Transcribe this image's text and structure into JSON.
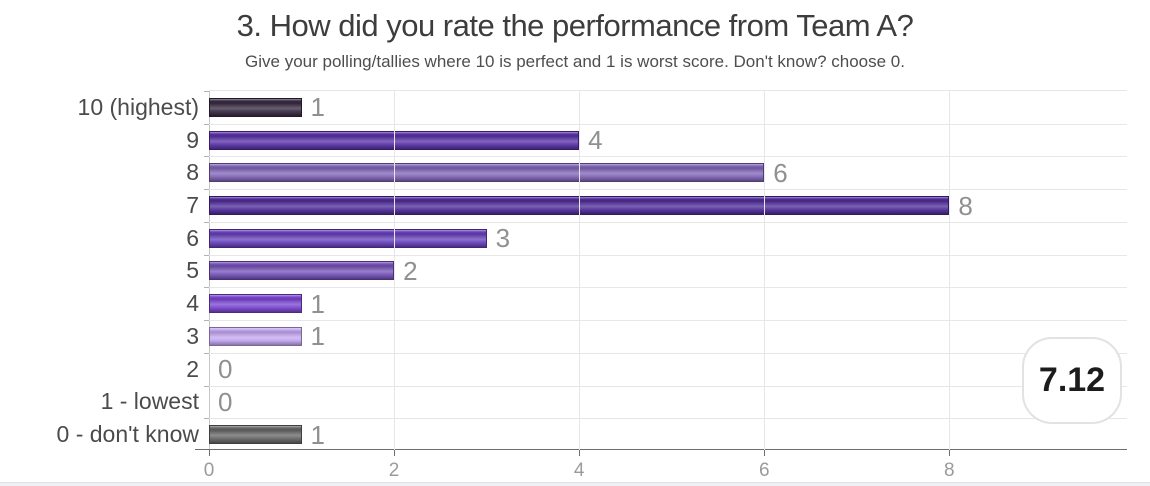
{
  "header": {
    "title": "3. How did you rate the performance from Team A?",
    "subtitle": "Give your polling/tallies where 10 is perfect and 1 is worst score. Don't know? choose 0."
  },
  "chart_data": {
    "type": "bar",
    "orientation": "horizontal",
    "title": "3. How did you rate the performance from Team A?",
    "subtitle": "Give your polling/tallies where 10 is perfect and 1 is worst score. Don't know? choose 0.",
    "categories": [
      "10 (highest)",
      "9",
      "8",
      "7",
      "6",
      "5",
      "4",
      "3",
      "2",
      "1 - lowest",
      "0 - don't know"
    ],
    "values": [
      1,
      4,
      6,
      8,
      3,
      2,
      1,
      1,
      0,
      0,
      1
    ],
    "value_labels": [
      "1",
      "4",
      "6",
      "8",
      "3",
      "2",
      "1",
      "1",
      "0",
      "0",
      "1"
    ],
    "bar_colors": [
      "#372a41",
      "#5831a6",
      "#8165b8",
      "#4f2d99",
      "#6640bb",
      "#7452b8",
      "#7a45d1",
      "#c3a6f0",
      null,
      null,
      "#666666"
    ],
    "xticks": [
      0,
      2,
      4,
      6,
      8
    ],
    "xtick_labels": [
      "0",
      "2",
      "4",
      "6",
      "8"
    ],
    "xlim": [
      0,
      9.92
    ],
    "grid": true,
    "legend": false,
    "xlabel": "",
    "ylabel": ""
  },
  "summary_badge": {
    "value": "7.12"
  },
  "colors": {
    "grid": "#e7e7e7",
    "axis": "#6e6e6e",
    "value_label": "#909090",
    "category_label": "#4b4b4b",
    "badge_border": "#e2e2e2",
    "badge_text": "#1c1c1c"
  }
}
